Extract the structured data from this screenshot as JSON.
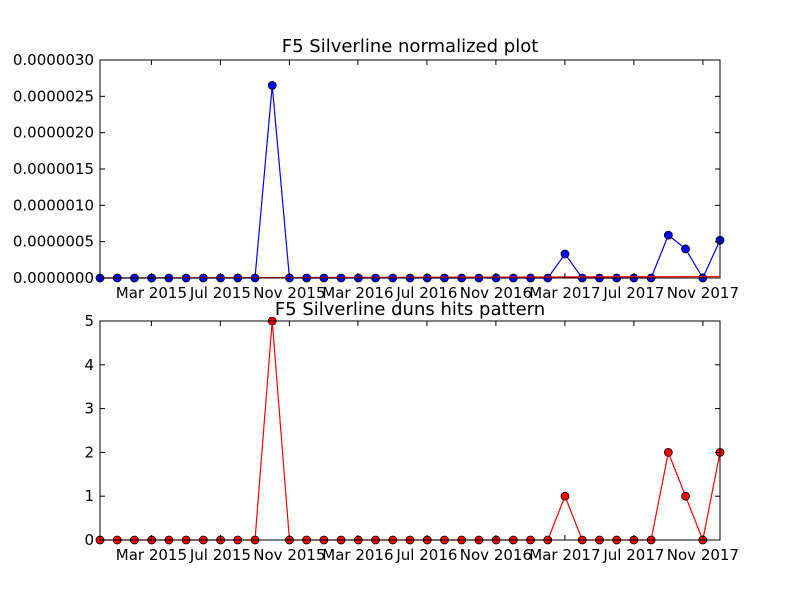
{
  "chart_data": [
    {
      "type": "line",
      "title": "F5 Silverline normalized plot",
      "xlabel": "",
      "ylabel": "",
      "x_tick_labels": [
        "Mar 2015",
        "Jul 2015",
        "Nov 2015",
        "Mar 2016",
        "Jul 2016",
        "Nov 2016",
        "Mar 2017",
        "Jul 2017",
        "Nov 2017"
      ],
      "y_tick_labels": [
        "0.0000000",
        "0.0000005",
        "0.0000010",
        "0.0000015",
        "0.0000020",
        "0.0000025",
        "0.0000030"
      ],
      "ylim": [
        0,
        3e-06
      ],
      "grid": false,
      "series": [
        {
          "color": "#0000ff",
          "marker": "circle",
          "values": [
            0,
            0,
            0,
            0,
            0,
            0,
            0,
            0,
            0,
            0,
            2.65e-06,
            0,
            0,
            0,
            0,
            0,
            0,
            0,
            0,
            0,
            0,
            0,
            0,
            0,
            0,
            0,
            0,
            3.3e-07,
            0,
            0,
            0,
            0,
            0,
            5.9e-07,
            4e-07,
            0,
            5.2e-07
          ]
        },
        {
          "color": "#ff0000",
          "marker": "none",
          "trend": true,
          "values": [
            0.0,
            2e-08
          ]
        }
      ]
    },
    {
      "type": "line",
      "title": "F5 Silverline duns hits pattern",
      "xlabel": "",
      "ylabel": "",
      "x_tick_labels": [
        "Mar 2015",
        "Jul 2015",
        "Nov 2015",
        "Mar 2016",
        "Jul 2016",
        "Nov 2016",
        "Mar 2017",
        "Jul 2017",
        "Nov 2017"
      ],
      "y_tick_labels": [
        "0",
        "1",
        "2",
        "3",
        "4",
        "5"
      ],
      "ylim": [
        0,
        5
      ],
      "grid": false,
      "series": [
        {
          "color": "#ff0000",
          "marker": "circle",
          "values": [
            0,
            0,
            0,
            0,
            0,
            0,
            0,
            0,
            0,
            0,
            5,
            0,
            0,
            0,
            0,
            0,
            0,
            0,
            0,
            0,
            0,
            0,
            0,
            0,
            0,
            0,
            0,
            1,
            0,
            0,
            0,
            0,
            0,
            2,
            1,
            0,
            2
          ]
        }
      ]
    }
  ]
}
